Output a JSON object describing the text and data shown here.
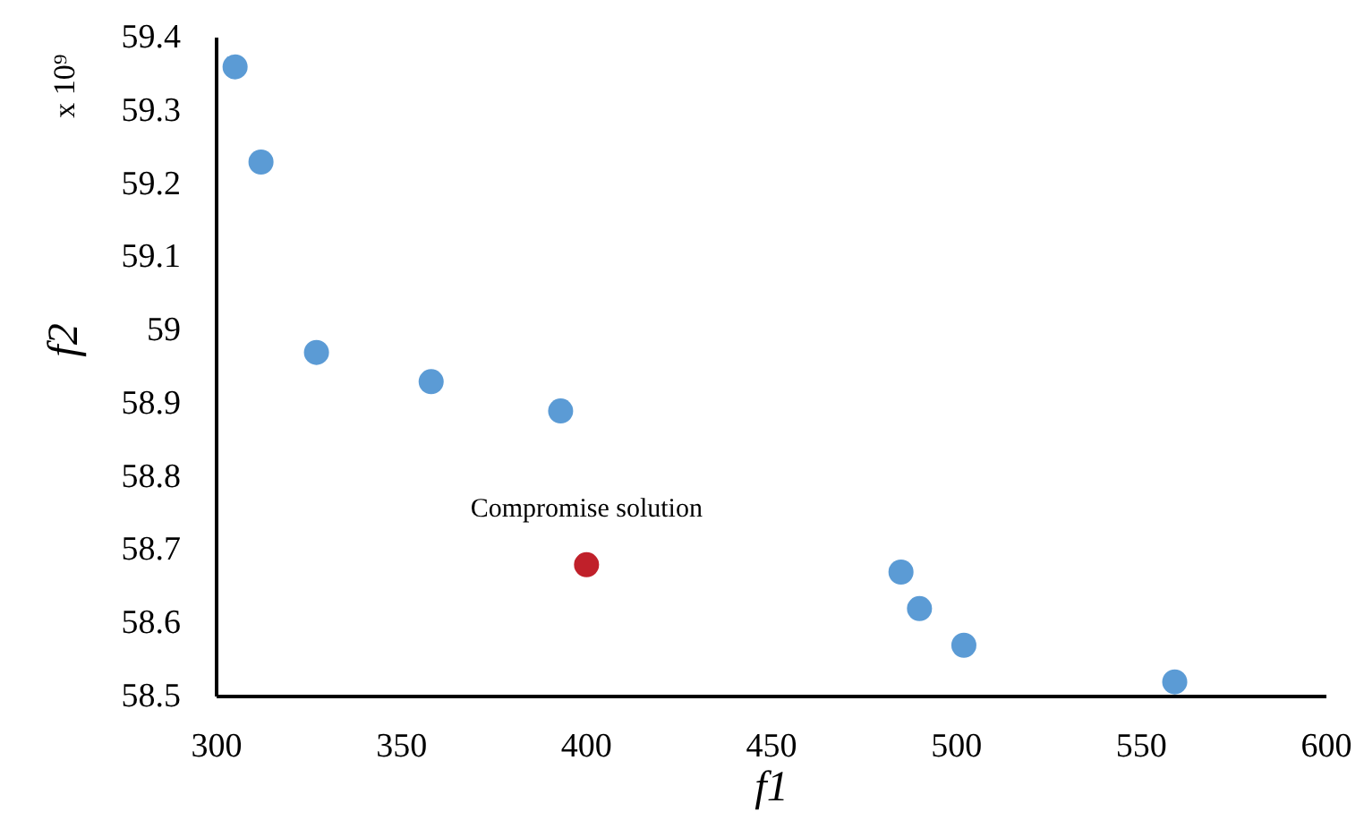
{
  "chart_data": {
    "type": "scatter",
    "xlabel": "f1",
    "ylabel": "f2",
    "xlim": [
      300,
      600
    ],
    "xticks": [
      300,
      350,
      400,
      450,
      500,
      550,
      600
    ],
    "ylim": [
      58.5,
      59.4
    ],
    "yticks": [
      58.5,
      58.6,
      58.7,
      58.8,
      58.9,
      59,
      59.1,
      59.2,
      59.3,
      59.4
    ],
    "grid": false,
    "marker": "circle",
    "series": [
      {
        "color": "#5b9bd5",
        "x": [
          305,
          312,
          327,
          358,
          393,
          485,
          490,
          502,
          559
        ],
        "values": [
          59.36,
          59.23,
          58.97,
          58.93,
          58.89,
          58.67,
          58.62,
          58.57,
          58.52
        ]
      },
      {
        "color": "#c0202a",
        "x": [
          400
        ],
        "values": [
          58.68
        ]
      }
    ],
    "annotations": [
      {
        "text": "Compromise solution",
        "x": 400,
        "y": 58.68
      },
      "x 10⁹"
    ]
  }
}
